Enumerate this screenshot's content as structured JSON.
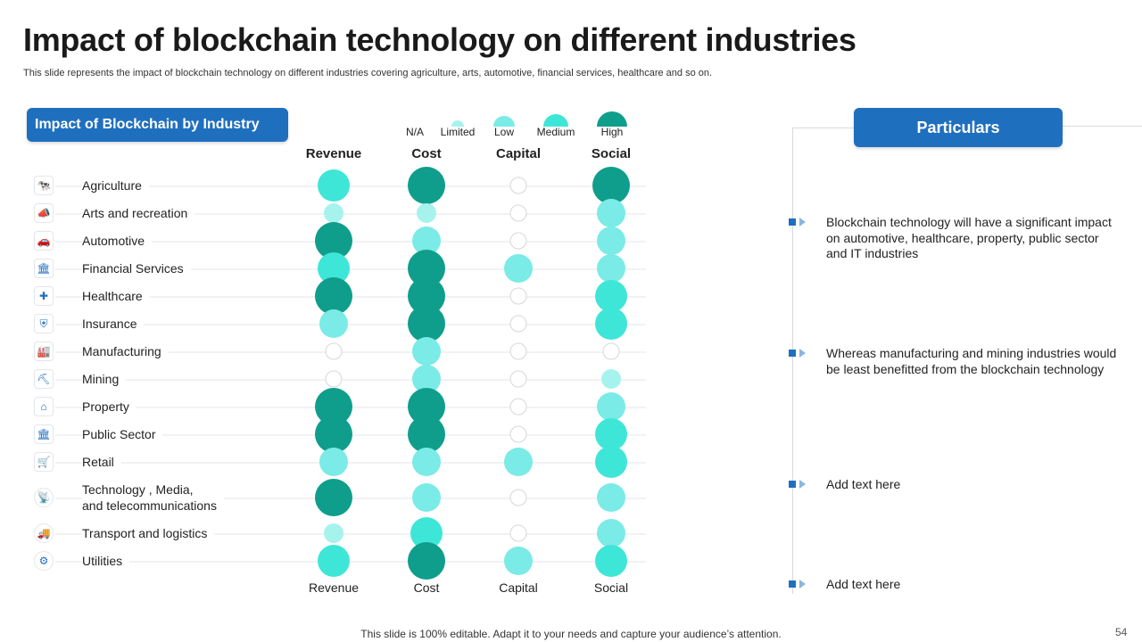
{
  "title": "Impact of blockchain technology on different industries",
  "subtitle": "This slide represents the impact of blockchain technology on different industries covering agriculture, arts, automotive, financial services, healthcare and so on.",
  "left_header": "Impact of Blockchain by Industry",
  "right_header": "Particulars",
  "legend": [
    {
      "label": "N/A",
      "level": 0
    },
    {
      "label": "Limited",
      "level": 1
    },
    {
      "label": "Low",
      "level": 2
    },
    {
      "label": "Medium",
      "level": 3
    },
    {
      "label": "High",
      "level": 4
    }
  ],
  "colors": {
    "level_0": "#ffffff",
    "level_1": "#a6f3ee",
    "level_2": "#7aebe6",
    "level_3": "#3ee6d8",
    "level_4": "#0f9e8c",
    "accent": "#1f6fbf"
  },
  "industry_icons": [
    "cow-icon",
    "megaphone-icon",
    "car-badge-icon",
    "bank-icon",
    "medical-hand-icon",
    "shield-icon",
    "factory-icon",
    "mining-icon",
    "house-icon",
    "government-icon",
    "shop-icon",
    "media-icon",
    "truck-icon",
    "gear-icon"
  ],
  "chart_data": {
    "type": "table",
    "title": "Impact of Blockchain by Industry",
    "scale": [
      "N/A",
      "Limited",
      "Low",
      "Medium",
      "High"
    ],
    "columns": [
      "Revenue",
      "Cost",
      "Capital",
      "Social"
    ],
    "industries": [
      {
        "name": "Agriculture",
        "values": [
          3,
          4,
          0,
          4
        ]
      },
      {
        "name": "Arts and recreation",
        "values": [
          1,
          1,
          0,
          2
        ]
      },
      {
        "name": "Automotive",
        "values": [
          4,
          2,
          0,
          2
        ]
      },
      {
        "name": "Financial Services",
        "values": [
          3,
          4,
          2,
          2
        ]
      },
      {
        "name": "Healthcare",
        "values": [
          4,
          4,
          0,
          3
        ]
      },
      {
        "name": "Insurance",
        "values": [
          2,
          4,
          0,
          3
        ]
      },
      {
        "name": "Manufacturing",
        "values": [
          0,
          2,
          0,
          0
        ]
      },
      {
        "name": "Mining",
        "values": [
          0,
          2,
          0,
          1
        ]
      },
      {
        "name": "Property",
        "values": [
          4,
          4,
          0,
          2
        ]
      },
      {
        "name": "Public Sector",
        "values": [
          4,
          4,
          0,
          3
        ]
      },
      {
        "name": "Retail",
        "values": [
          2,
          2,
          2,
          3
        ]
      },
      {
        "name": "Technology , Media,\nand telecommunications",
        "values": [
          4,
          2,
          0,
          2
        ]
      },
      {
        "name": "Transport and logistics",
        "values": [
          1,
          3,
          0,
          2
        ]
      },
      {
        "name": "Utilities",
        "values": [
          3,
          4,
          2,
          3
        ]
      }
    ]
  },
  "points": [
    "Blockchain technology will have a significant impact on automotive, healthcare, property, public sector and IT industries",
    "Whereas manufacturing and mining industries would be least benefitted from the blockchain technology",
    "Add text here",
    "Add text here"
  ],
  "footer": "This slide is 100% editable. Adapt it to your needs and capture your audience’s attention.",
  "page_number": "54"
}
